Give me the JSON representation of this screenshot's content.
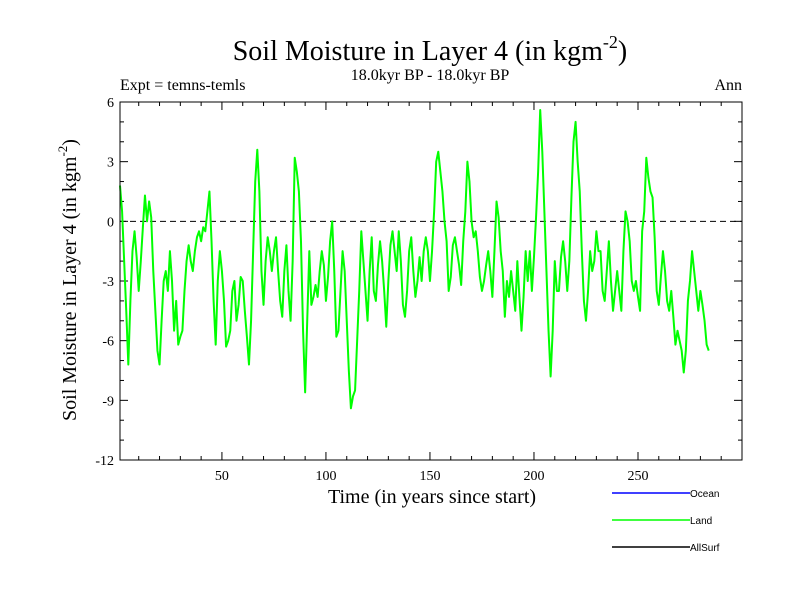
{
  "chart_data": {
    "type": "line",
    "title_main": "Soil Moisture in Layer 4 (in kgm",
    "title_sup": "-2",
    "title_close": ")",
    "subtitle": "18.0kyr BP - 18.0kyr BP",
    "expt_label": "Expt = temns-temls",
    "season_label": "Ann",
    "xlabel": "Time (in years since start)",
    "ylabel_main": "Soil Moisture in Layer 4 (in kgm",
    "ylabel_sup": "-2",
    "ylabel_close": ")",
    "xlim": [
      1,
      300
    ],
    "ylim": [
      -12,
      6
    ],
    "x_ticks": [
      50,
      100,
      150,
      200,
      250
    ],
    "x_tick_labels": [
      "50",
      "100",
      "150",
      "200",
      "250"
    ],
    "y_ticks": [
      6,
      3,
      0,
      -3,
      -6,
      -9,
      -12
    ],
    "y_tick_labels": [
      "6",
      "3",
      "0",
      "-3",
      "-6",
      "-9",
      "-12"
    ],
    "reference_line": 0,
    "legend": [
      {
        "name": "Ocean",
        "color": "#0000ff"
      },
      {
        "name": "Land",
        "color": "#00ff00"
      },
      {
        "name": "AllSurf",
        "color": "#000000"
      }
    ],
    "series": [
      {
        "name": "Land",
        "color": "#00ff00",
        "x_start": 1,
        "x_step": 1,
        "values": [
          1.8,
          0.5,
          -2.0,
          -4.5,
          -7.2,
          -4.0,
          -1.5,
          -0.5,
          -1.8,
          -3.5,
          -2.0,
          -0.3,
          1.3,
          0.0,
          1.0,
          0.2,
          -2.5,
          -4.5,
          -6.5,
          -7.2,
          -5.0,
          -3.0,
          -2.5,
          -3.5,
          -1.5,
          -3.0,
          -5.5,
          -4.0,
          -6.2,
          -5.8,
          -5.5,
          -3.5,
          -2.0,
          -1.2,
          -2.0,
          -2.5,
          -1.5,
          -0.8,
          -0.5,
          -1.0,
          -0.3,
          -0.5,
          0.5,
          1.5,
          -1.0,
          -4.0,
          -6.2,
          -3.0,
          -1.5,
          -2.5,
          -4.0,
          -6.3,
          -6.0,
          -5.5,
          -3.5,
          -3.0,
          -5.0,
          -4.2,
          -2.8,
          -3.0,
          -4.5,
          -5.8,
          -7.2,
          -5.0,
          -1.5,
          2.0,
          3.6,
          1.5,
          -2.5,
          -4.2,
          -2.0,
          -0.8,
          -1.5,
          -2.5,
          -1.5,
          -0.8,
          -2.5,
          -4.0,
          -4.8,
          -2.5,
          -1.2,
          -3.5,
          -5.0,
          -2.0,
          3.2,
          2.5,
          1.5,
          -1.0,
          -5.5,
          -8.6,
          -5.0,
          -1.5,
          -4.2,
          -3.8,
          -3.2,
          -3.8,
          -2.5,
          -1.5,
          -2.2,
          -4.0,
          -2.8,
          -1.0,
          0.0,
          -2.5,
          -5.8,
          -5.5,
          -3.5,
          -1.5,
          -2.5,
          -5.0,
          -7.5,
          -9.4,
          -8.8,
          -8.5,
          -6.0,
          -3.5,
          -0.5,
          -2.0,
          -3.5,
          -5.0,
          -2.5,
          -0.8,
          -3.5,
          -4.0,
          -2.2,
          -1.0,
          -2.0,
          -3.5,
          -5.3,
          -3.0,
          -1.2,
          -0.5,
          -1.5,
          -2.5,
          -0.5,
          -2.0,
          -4.2,
          -4.8,
          -3.5,
          -1.5,
          -0.8,
          -2.5,
          -3.8,
          -3.0,
          -1.8,
          -3.0,
          -1.5,
          -0.8,
          -1.5,
          -3.0,
          -1.5,
          0.5,
          3.0,
          3.5,
          2.5,
          1.5,
          0.0,
          -1.0,
          -3.5,
          -2.8,
          -1.2,
          -0.8,
          -1.5,
          -2.2,
          -3.2,
          -1.0,
          0.5,
          3.0,
          2.0,
          0.0,
          -0.8,
          -0.5,
          -1.5,
          -2.8,
          -3.5,
          -3.0,
          -2.2,
          -1.5,
          -2.5,
          -3.8,
          -1.5,
          1.0,
          0.2,
          -1.5,
          -2.5,
          -4.8,
          -3.0,
          -3.8,
          -2.5,
          -3.5,
          -4.5,
          -2.0,
          -3.8,
          -5.5,
          -3.8,
          -1.5,
          -3.0,
          -1.5,
          -3.5,
          -1.8,
          0.2,
          2.5,
          5.6,
          3.5,
          0.5,
          -2.5,
          -5.5,
          -7.8,
          -5.5,
          -2.0,
          -3.5,
          -3.5,
          -1.8,
          -1.0,
          -2.0,
          -3.5,
          -2.0,
          1.2,
          4.0,
          5.0,
          3.0,
          1.5,
          -1.5,
          -4.0,
          -5.0,
          -3.5,
          -1.5,
          -2.5,
          -2.0,
          -0.5,
          -1.5,
          -1.5,
          -3.5,
          -4.0,
          -2.5,
          -1.0,
          -3.0,
          -4.5,
          -3.5,
          -2.5,
          -3.5,
          -4.5,
          -1.5,
          0.5,
          0.0,
          -1.0,
          -3.0,
          -3.5,
          -3.0,
          -3.8,
          -4.5,
          -0.5,
          0.5,
          3.2,
          2.2,
          1.5,
          1.2,
          -0.8,
          -3.5,
          -4.2,
          -2.8,
          -1.5,
          -2.5,
          -4.0,
          -4.5,
          -3.5,
          -4.8,
          -6.2,
          -5.5,
          -6.0,
          -6.5,
          -7.6,
          -6.5,
          -4.0,
          -3.0,
          -1.5,
          -2.5,
          -3.5,
          -4.5,
          -3.5,
          -4.2,
          -5.0,
          -6.2,
          -6.5
        ]
      },
      {
        "name": "Ocean",
        "color": "#0000ff",
        "values": []
      },
      {
        "name": "AllSurf",
        "color": "#000000",
        "values": []
      }
    ]
  }
}
